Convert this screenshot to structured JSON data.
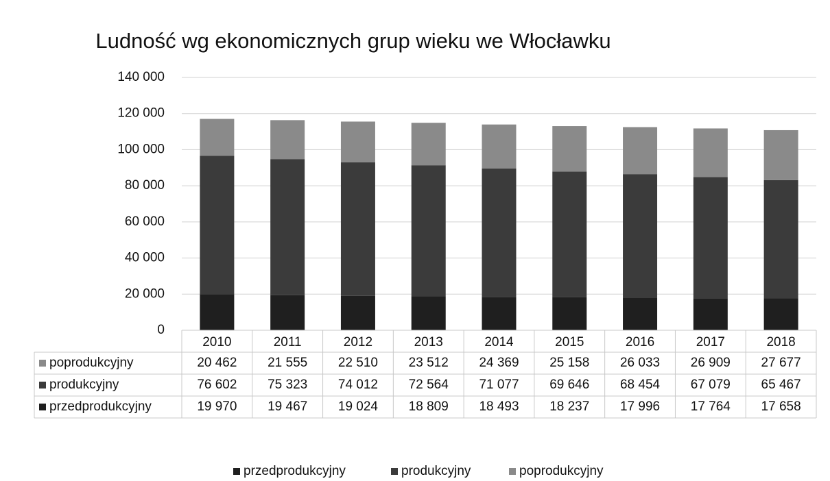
{
  "chart_data": {
    "type": "stacked_bar",
    "title": "Ludność wg ekonomicznych grup wieku we Włocławku",
    "categories": [
      "2010",
      "2011",
      "2012",
      "2013",
      "2014",
      "2015",
      "2016",
      "2017",
      "2018"
    ],
    "series": [
      {
        "name": "przedprodukcyjny",
        "color": "#1f1f1f",
        "values": [
          19970,
          19467,
          19024,
          18809,
          18493,
          18237,
          17996,
          17764,
          17658
        ],
        "value_labels": [
          "19 970",
          "19 467",
          "19 024",
          "18 809",
          "18 493",
          "18 237",
          "17 996",
          "17 764",
          "17 658"
        ]
      },
      {
        "name": "produkcyjny",
        "color": "#3b3b3b",
        "values": [
          76602,
          75323,
          74012,
          72564,
          71077,
          69646,
          68454,
          67079,
          65467
        ],
        "value_labels": [
          "76 602",
          "75 323",
          "74 012",
          "72 564",
          "71 077",
          "69 646",
          "68 454",
          "67 079",
          "65 467"
        ]
      },
      {
        "name": "poprodukcyjny",
        "color": "#8a8a8a",
        "values": [
          20462,
          21555,
          22510,
          23512,
          24369,
          25158,
          26033,
          26909,
          27677
        ],
        "value_labels": [
          "20 462",
          "21 555",
          "22 510",
          "23 512",
          "24 369",
          "25 158",
          "26 033",
          "26 909",
          "27 677"
        ]
      }
    ],
    "ylim": [
      0,
      140000
    ],
    "yticks": [
      0,
      {
        "value": 20000,
        "label": "20 000"
      },
      {
        "value": 40000,
        "label": "40 000"
      },
      {
        "value": 60000,
        "label": "60 000"
      },
      {
        "value": 80000,
        "label": "80 000"
      },
      {
        "value": 100000,
        "label": "100 000"
      },
      {
        "value": 120000,
        "label": "120 000"
      },
      {
        "value": 140000,
        "label": "140 000"
      }
    ],
    "grid": true,
    "legend": "bottom"
  }
}
